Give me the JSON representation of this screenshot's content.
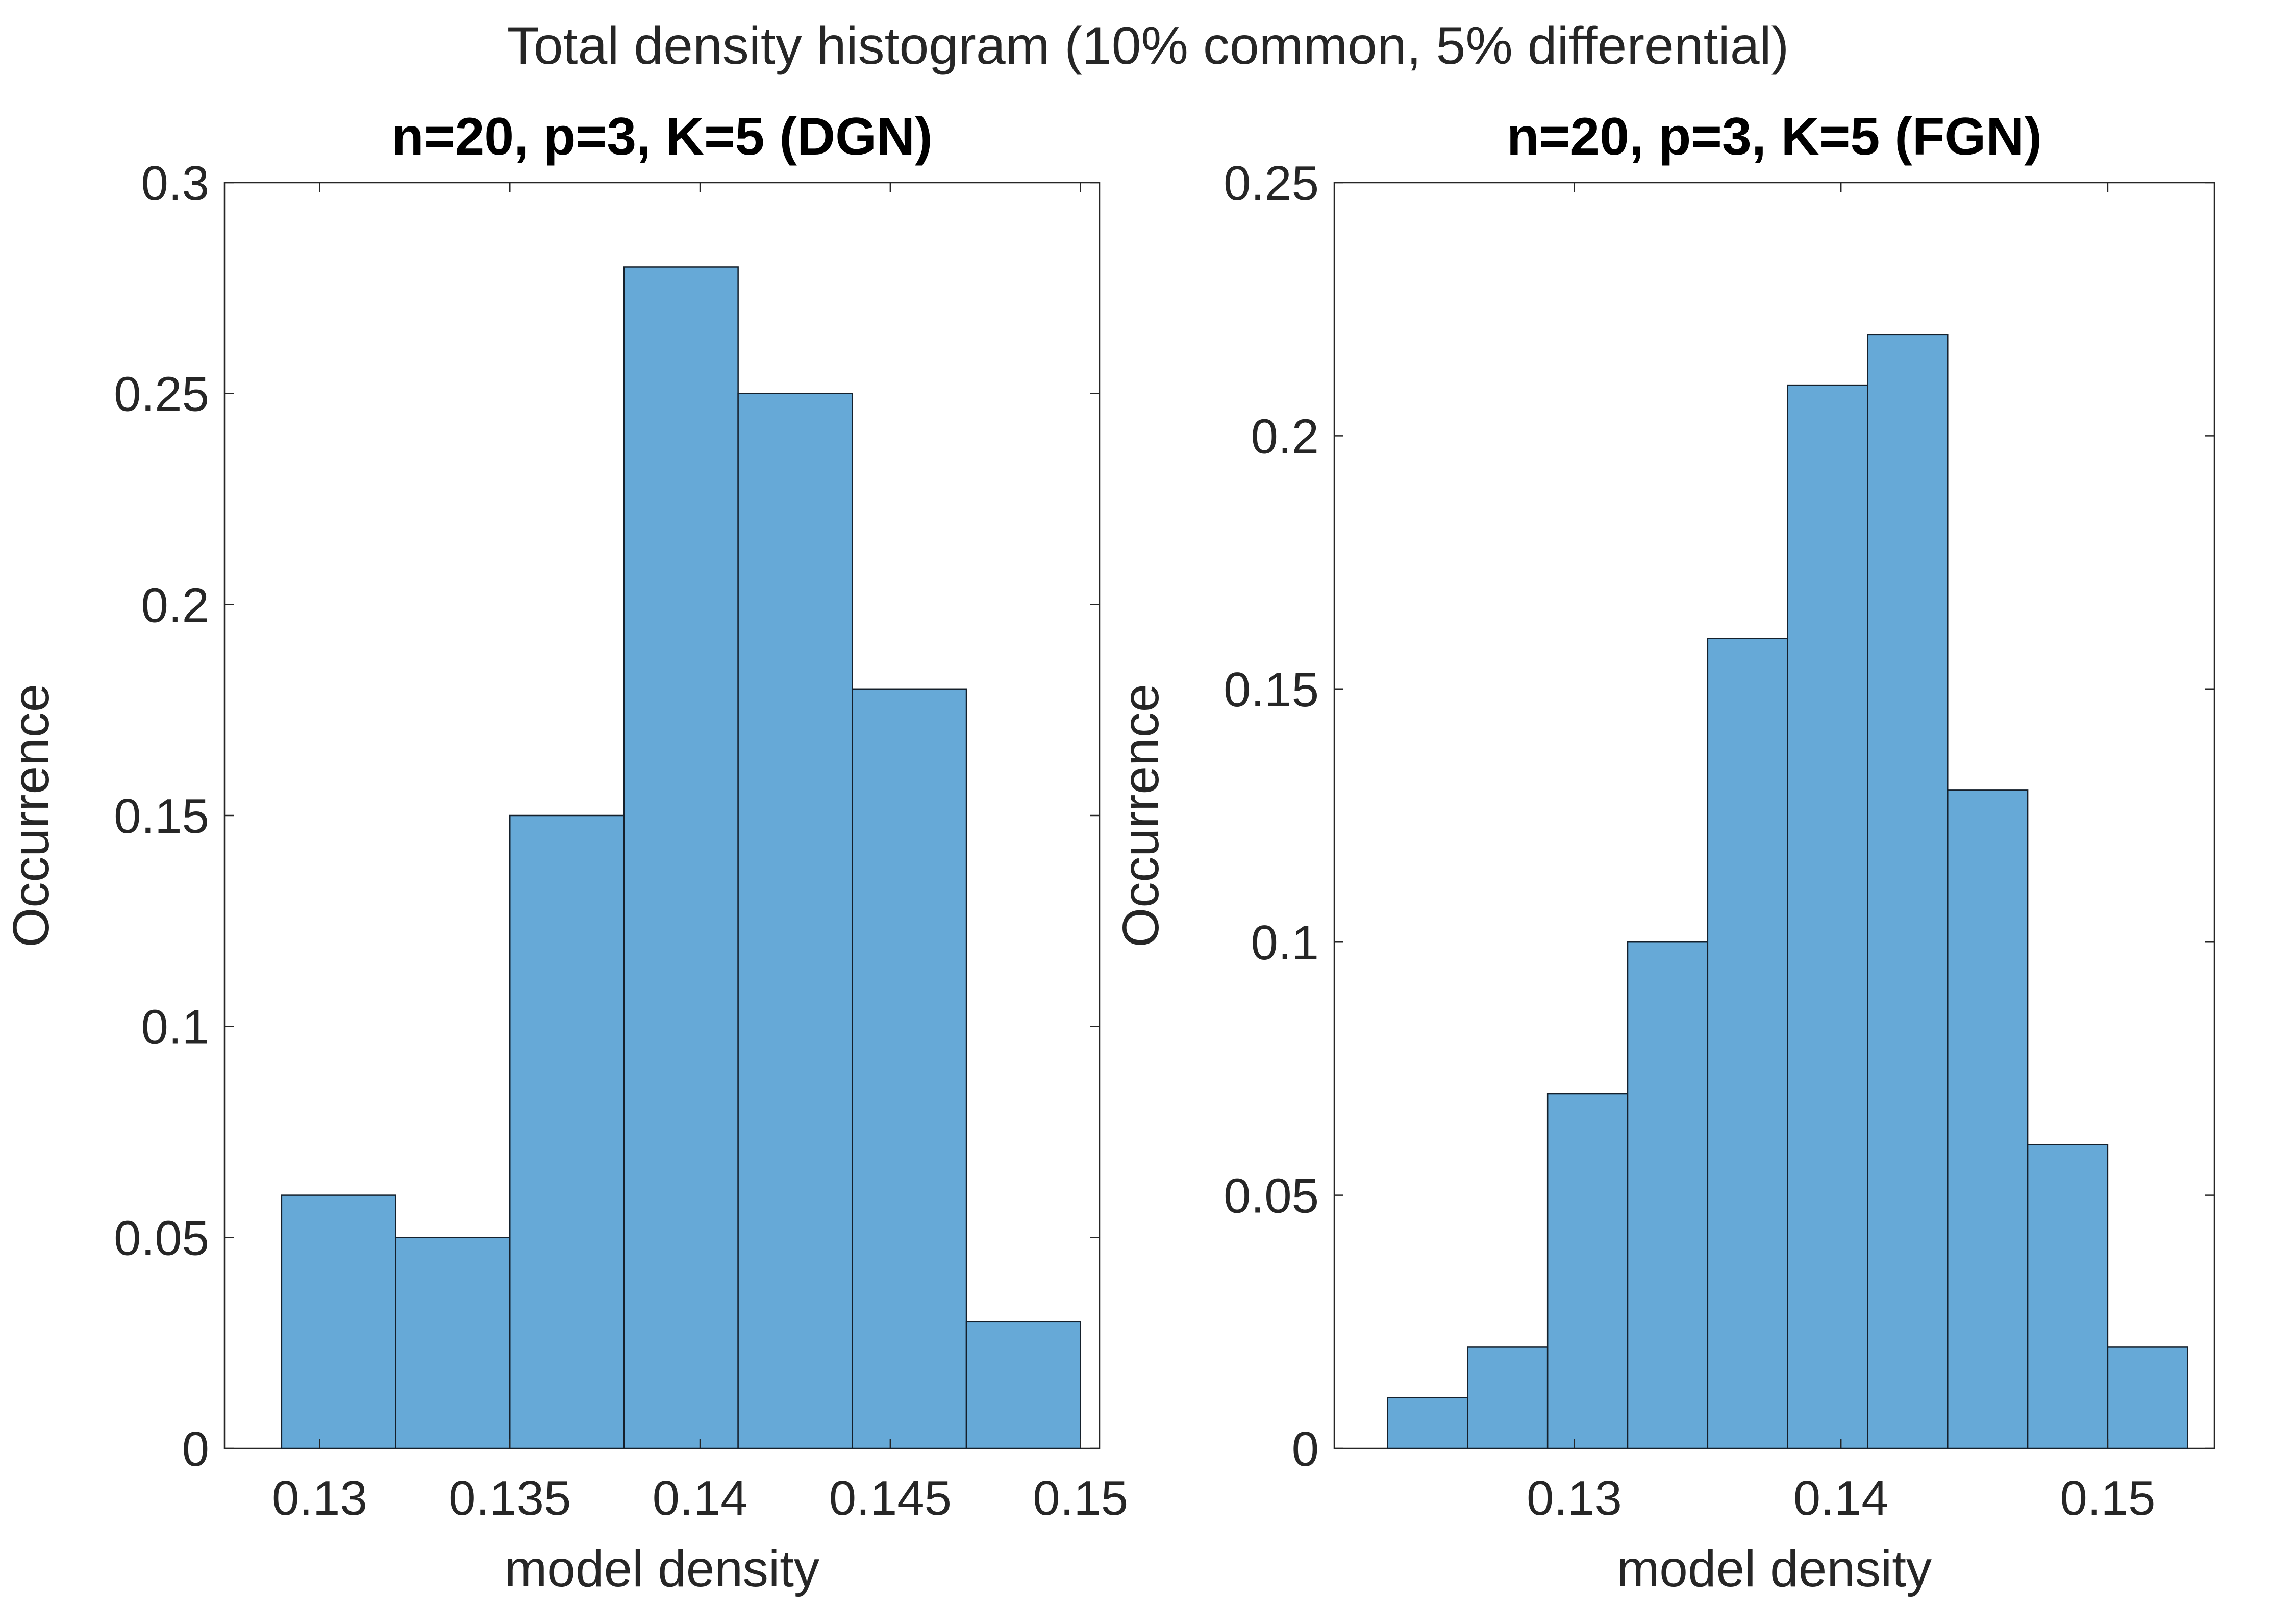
{
  "figure": {
    "title": "Total density histogram (10% common, 5% differential)"
  },
  "colors": {
    "bar": "#66a9d7",
    "axis": "#262626"
  },
  "chart_data": [
    {
      "type": "bar",
      "title": "n=20, p=3, K=5 (DGN)",
      "xlabel": "model density",
      "ylabel": "Occurrence",
      "xlim": [
        0.1275,
        0.1505
      ],
      "ylim": [
        0,
        0.3
      ],
      "xticks": [
        0.13,
        0.135,
        0.14,
        0.145,
        0.15
      ],
      "xtick_labels": [
        "0.13",
        "0.135",
        "0.14",
        "0.145",
        "0.15"
      ],
      "yticks": [
        0,
        0.05,
        0.1,
        0.15,
        0.2,
        0.25,
        0.3
      ],
      "ytick_labels": [
        "0",
        "0.05",
        "0.1",
        "0.15",
        "0.2",
        "0.25",
        "0.3"
      ],
      "bin_edges": [
        0.129,
        0.132,
        0.135,
        0.138,
        0.141,
        0.144,
        0.147,
        0.15
      ],
      "values": [
        0.06,
        0.05,
        0.15,
        0.28,
        0.25,
        0.18,
        0.03
      ]
    },
    {
      "type": "bar",
      "title": "n=20, p=3, K=5 (FGN)",
      "xlabel": "model density",
      "ylabel": "Occurrence",
      "xlim": [
        0.121,
        0.154
      ],
      "ylim": [
        0,
        0.25
      ],
      "xticks": [
        0.13,
        0.14,
        0.15
      ],
      "xtick_labels": [
        "0.13",
        "0.14",
        "0.15"
      ],
      "yticks": [
        0,
        0.05,
        0.1,
        0.15,
        0.2,
        0.25
      ],
      "ytick_labels": [
        "0",
        "0.05",
        "0.1",
        "0.15",
        "0.2",
        "0.25"
      ],
      "bin_edges": [
        0.123,
        0.126,
        0.129,
        0.132,
        0.135,
        0.138,
        0.141,
        0.144,
        0.147,
        0.15,
        0.153
      ],
      "values": [
        0.01,
        0.02,
        0.07,
        0.1,
        0.16,
        0.21,
        0.22,
        0.13,
        0.06,
        0.02
      ]
    }
  ]
}
